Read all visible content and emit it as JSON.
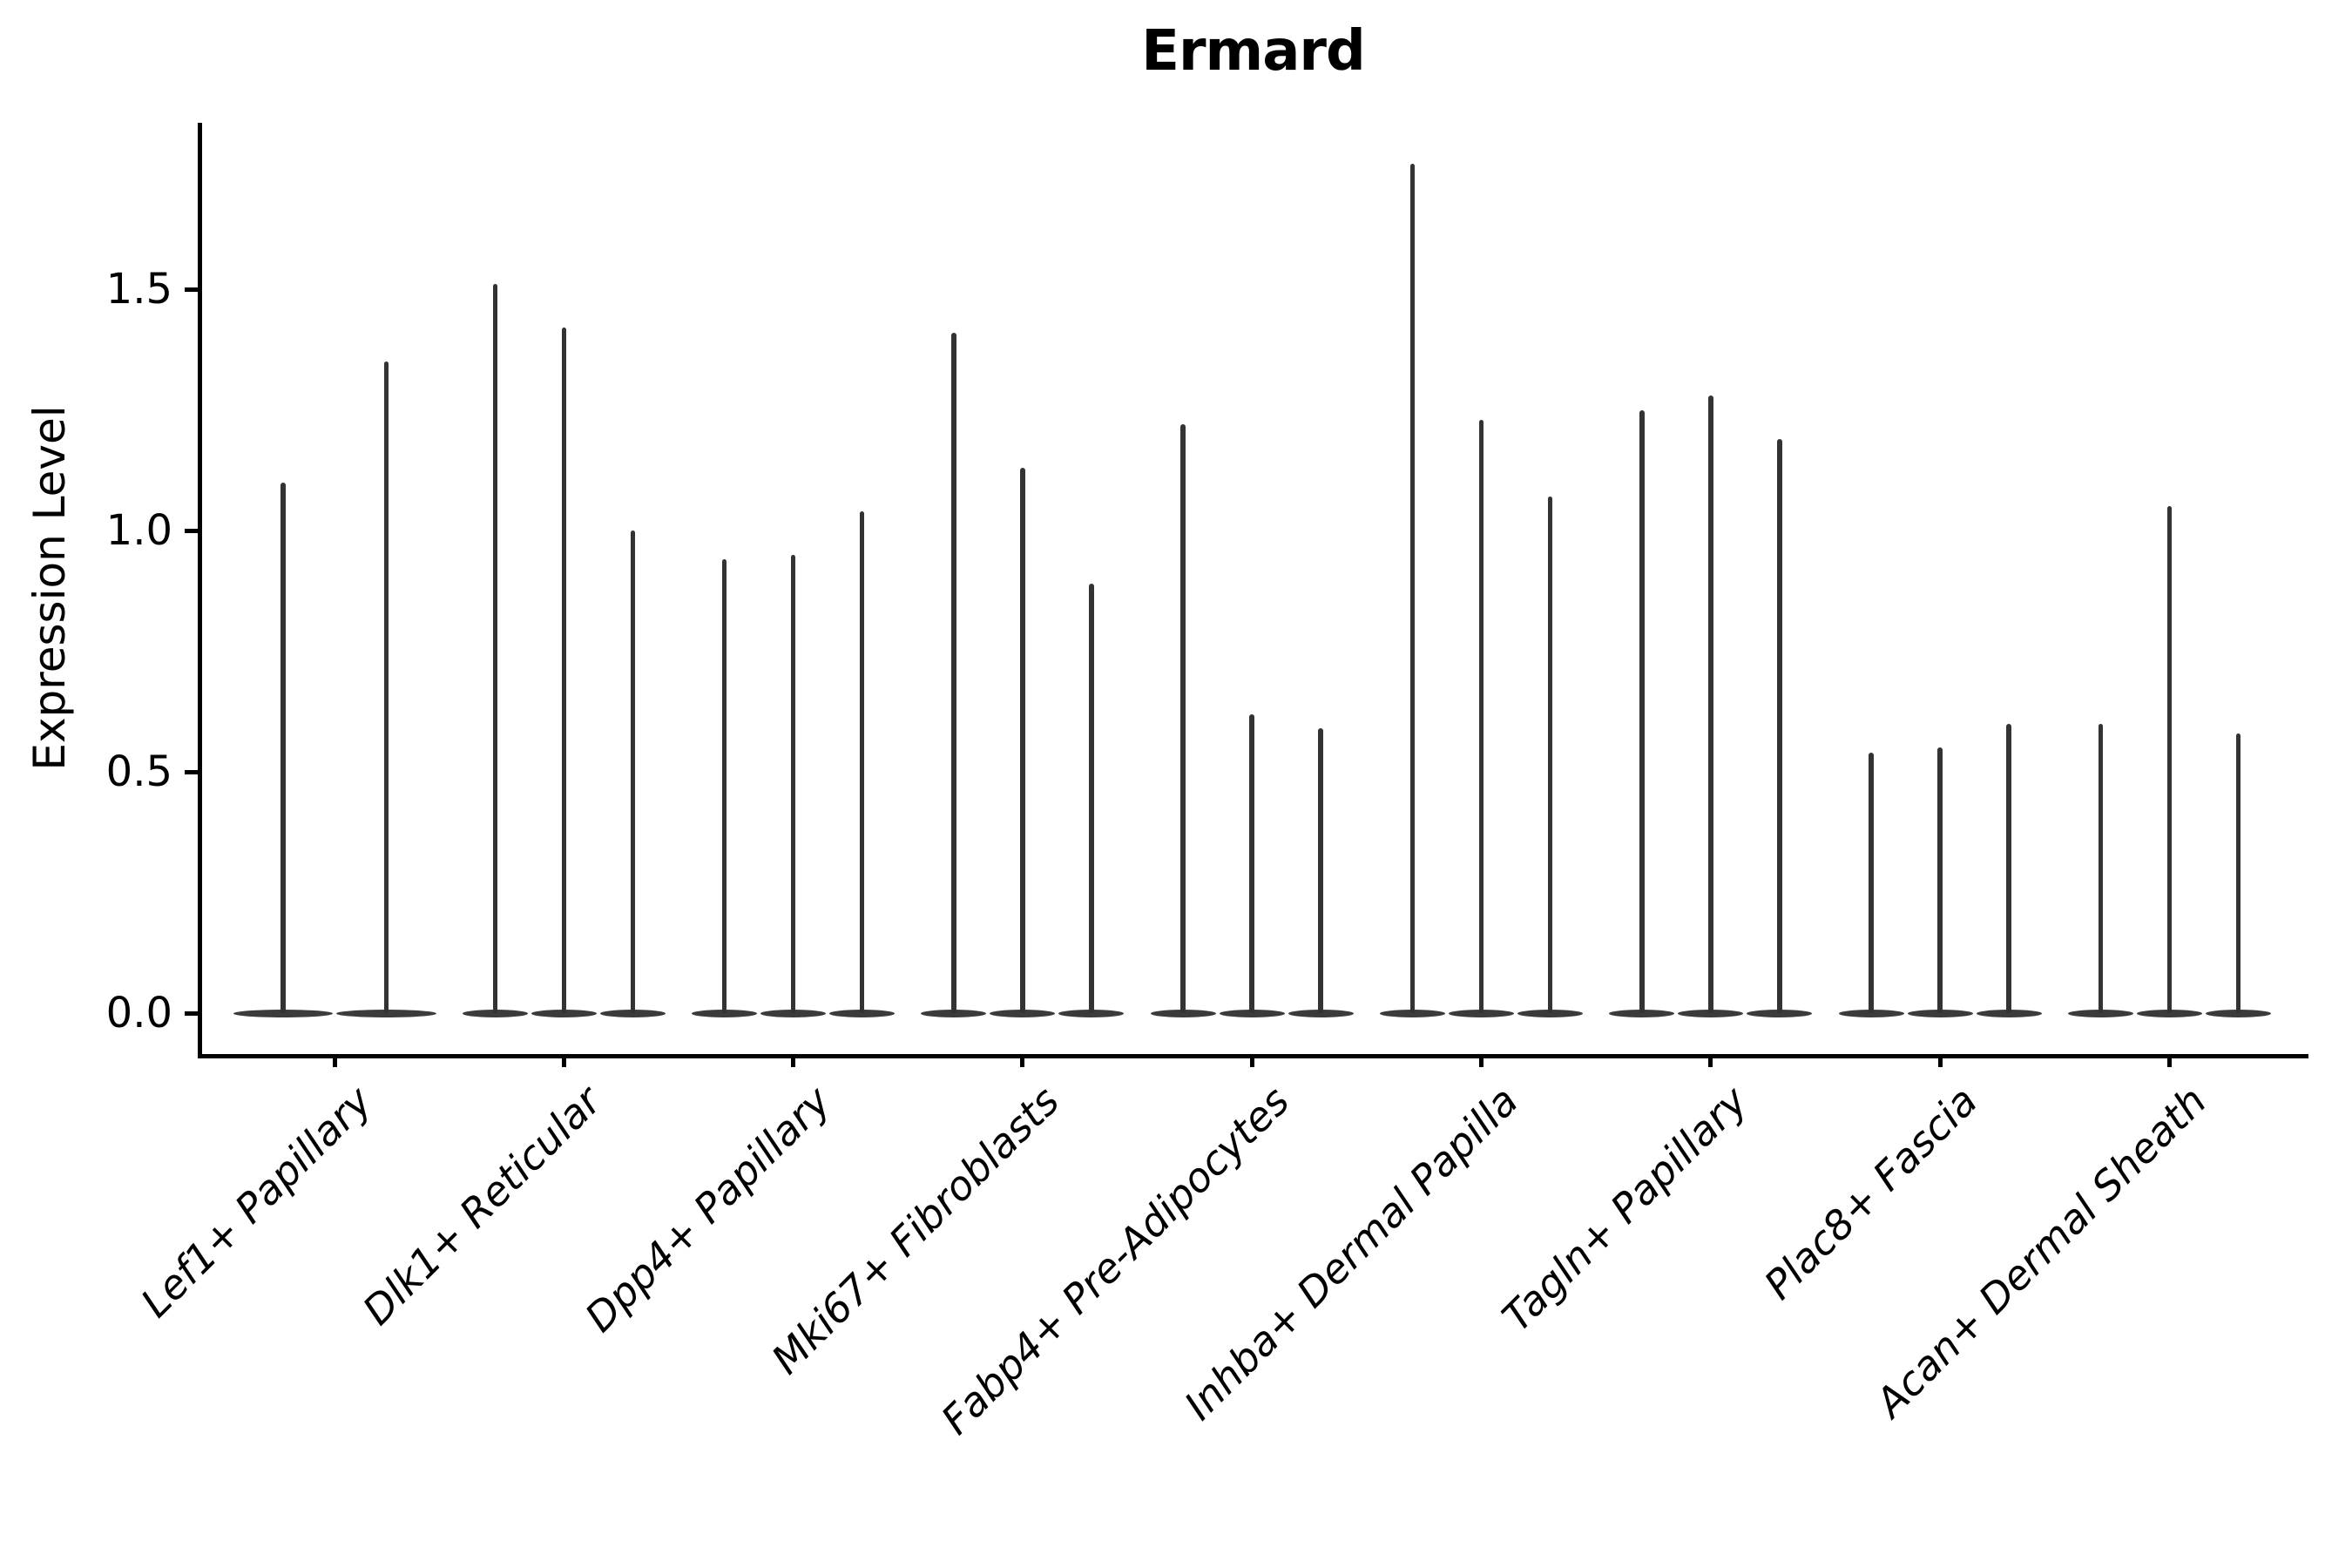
{
  "chart_data": {
    "type": "violin",
    "title": "Ermard",
    "xlabel": "",
    "ylabel": "Expression Level",
    "yticks": [
      "0.0",
      "0.5",
      "1.0",
      "1.5"
    ],
    "ytick_values": [
      0.0,
      0.5,
      1.0,
      1.5
    ],
    "ylim": [
      -0.085,
      1.845
    ],
    "grid": false,
    "legend": "none",
    "x_label_rotation_deg": 45,
    "x_label_style": "italic",
    "description": "Violin plot of gene expression; each cell type shows 2-3 thin violins: wide flat mass at 0 with a narrow spike up to the maximum expression value.",
    "categories": [
      "Lef1+ Papillary",
      "Dlk1+ Reticular",
      "Dpp4+ Papillary",
      "Mki67+ Fibroblasts",
      "Fabp4+ Pre-Adipocytes",
      "Inhba+ Dermal Papilla",
      "Tagln+ Papillary",
      "Plac8+ Fascia",
      "Acan+ Dermal Sheath"
    ],
    "series": [
      {
        "category": "Lef1+ Papillary",
        "violin_max_values": [
          1.1,
          1.35
        ]
      },
      {
        "category": "Dlk1+ Reticular",
        "violin_max_values": [
          1.51,
          1.42,
          1.0
        ]
      },
      {
        "category": "Dpp4+ Papillary",
        "violin_max_values": [
          0.94,
          0.95,
          1.04
        ]
      },
      {
        "category": "Mki67+ Fibroblasts",
        "violin_max_values": [
          1.41,
          1.13,
          0.89
        ]
      },
      {
        "category": "Fabp4+ Pre-Adipocytes",
        "violin_max_values": [
          1.22,
          0.62,
          0.59
        ]
      },
      {
        "category": "Inhba+ Dermal Papilla",
        "violin_max_values": [
          1.76,
          1.23,
          1.07
        ]
      },
      {
        "category": "Tagln+ Papillary",
        "violin_max_values": [
          1.25,
          1.28,
          1.19
        ]
      },
      {
        "category": "Plac8+ Fascia",
        "violin_max_values": [
          0.54,
          0.55,
          0.6
        ]
      },
      {
        "category": "Acan+ Dermal Sheath",
        "violin_max_values": [
          0.6,
          1.05,
          0.58
        ]
      }
    ],
    "colors": {
      "violin_stroke": "#333333",
      "violin_base": "#3b3b3b",
      "axis": "#000000",
      "background": "#ffffff"
    }
  }
}
